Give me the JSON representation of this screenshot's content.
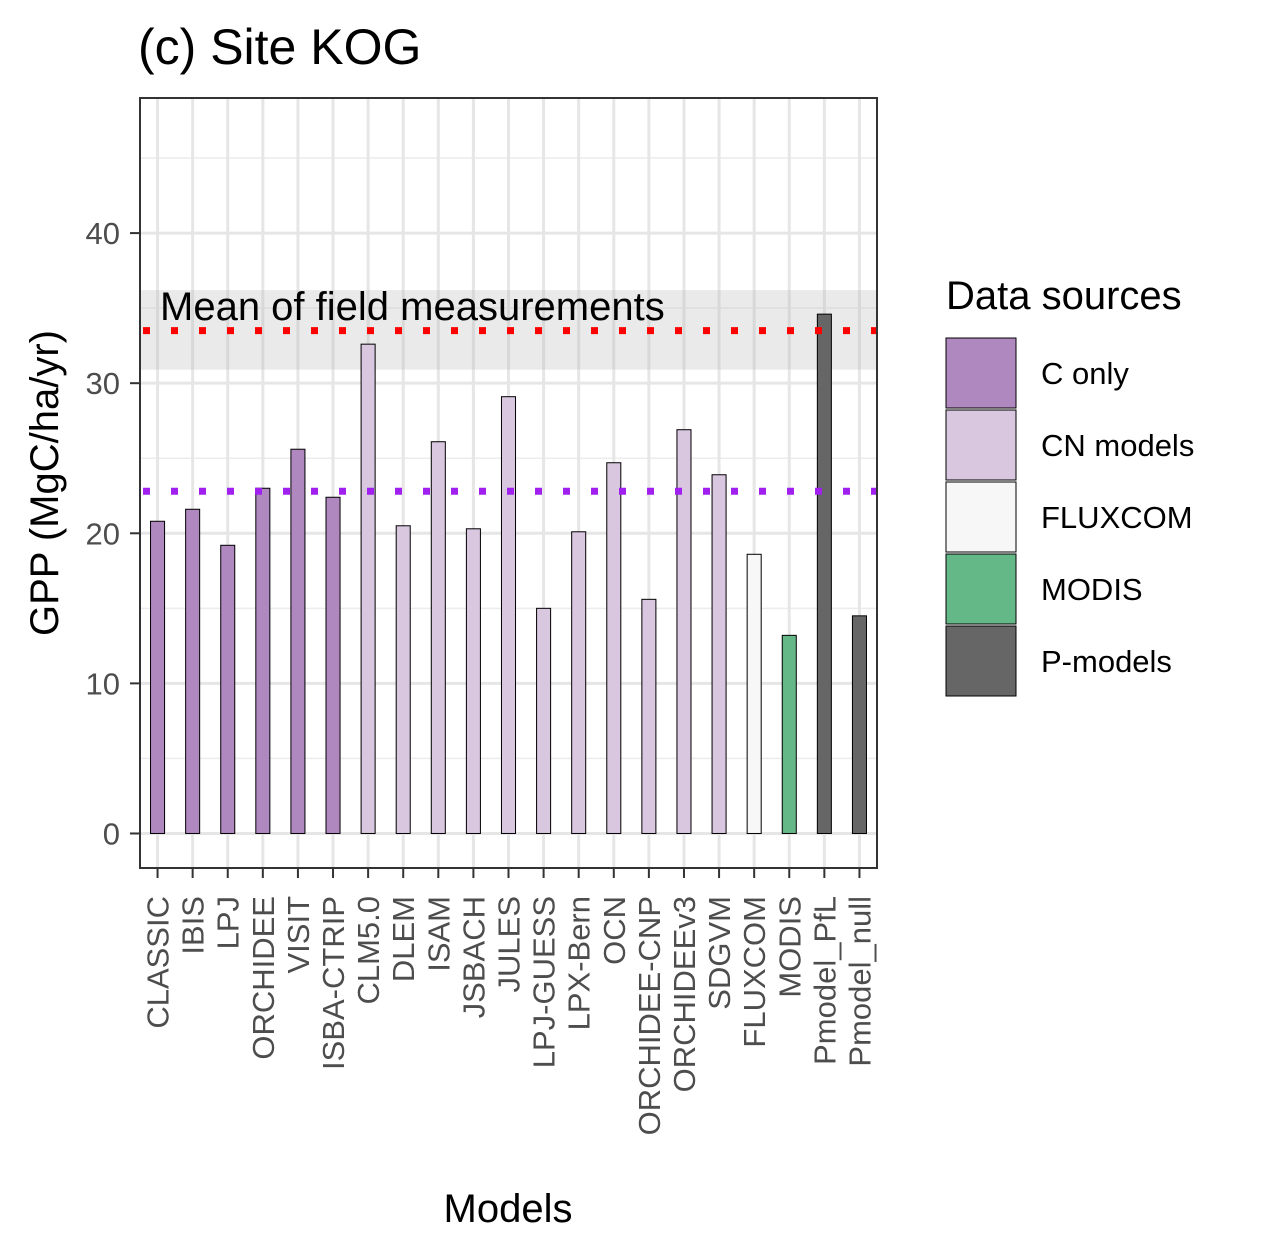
{
  "chart_data": {
    "type": "bar",
    "title": "(c) Site KOG",
    "xlabel": "Models",
    "ylabel": "GPP (MgC/ha/yr)",
    "ylim": [
      -2.3,
      49
    ],
    "yticks": [
      0,
      10,
      20,
      30,
      40
    ],
    "grid": true,
    "categories": [
      "CLASSIC",
      "IBIS",
      "LPJ",
      "ORCHIDEE",
      "VISIT",
      "ISBA-CTRIP",
      "CLM5.0",
      "DLEM",
      "ISAM",
      "JSBACH",
      "JULES",
      "LPJ-GUESS",
      "LPX-Bern",
      "OCN",
      "ORCHIDEE-CNP",
      "ORCHIDEEv3",
      "SDGVM",
      "FLUXCOM",
      "MODIS",
      "Pmodel_PfL",
      "Pmodel_null"
    ],
    "values": [
      20.8,
      21.6,
      19.2,
      23.0,
      25.6,
      22.4,
      32.6,
      20.5,
      26.1,
      20.3,
      29.1,
      15.0,
      20.1,
      24.7,
      15.6,
      26.9,
      23.9,
      18.6,
      13.2,
      34.6,
      14.5
    ],
    "groups": [
      "C only",
      "C only",
      "C only",
      "C only",
      "C only",
      "C only",
      "CN models",
      "CN models",
      "CN models",
      "CN models",
      "CN models",
      "CN models",
      "CN models",
      "CN models",
      "CN models",
      "CN models",
      "CN models",
      "FLUXCOM",
      "MODIS",
      "P-models",
      "P-models"
    ],
    "reference_lines": [
      {
        "label": "Mean of field measurements",
        "value": 33.5,
        "band": [
          30.9,
          36.2
        ],
        "color": "#ff0000"
      },
      {
        "label": "",
        "value": 22.8,
        "color": "#a020f0"
      }
    ],
    "legend": {
      "title": "Data sources",
      "placement": "right",
      "entries": [
        {
          "label": "C only",
          "color": "#af88c0"
        },
        {
          "label": "CN models",
          "color": "#d9c6df"
        },
        {
          "label": "FLUXCOM",
          "color": "#f7f7f7"
        },
        {
          "label": "MODIS",
          "color": "#64b888"
        },
        {
          "label": "P-models",
          "color": "#666666"
        }
      ]
    }
  }
}
